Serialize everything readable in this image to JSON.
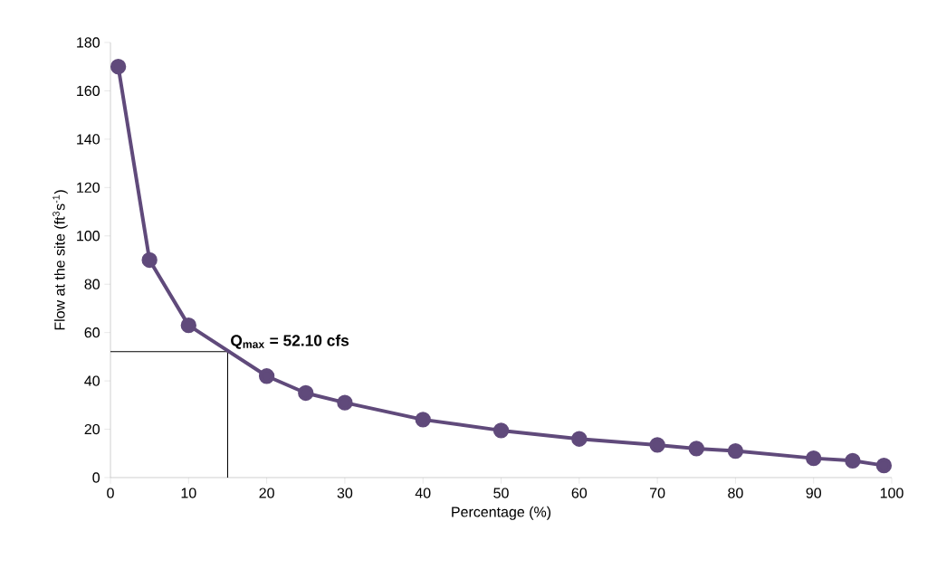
{
  "chart_data": {
    "type": "line",
    "xlabel": "Percentage (%)",
    "ylabel": "Flow at the site (ft$^{3}$s$^{-1}$)",
    "x": [
      1,
      5,
      10,
      20,
      25,
      30,
      40,
      50,
      60,
      70,
      75,
      80,
      90,
      95,
      99
    ],
    "series": [
      {
        "color": "#604a7b",
        "values": [
          170,
          90,
          63,
          42,
          35,
          31,
          24,
          19.5,
          16,
          13.5,
          12,
          11,
          8,
          7,
          5
        ]
      }
    ],
    "xlim": [
      0,
      100
    ],
    "ylim": [
      0,
      180
    ],
    "xticks": [
      0,
      10,
      20,
      30,
      40,
      50,
      60,
      70,
      80,
      90,
      100
    ],
    "yticks": [
      0,
      20,
      40,
      60,
      80,
      100,
      120,
      140,
      160,
      180
    ],
    "ref_lines": [
      {
        "axis": "y",
        "value": 52.1,
        "label": "Q$_{max}$ = 52.10 cfs",
        "color": "#000000"
      },
      {
        "axis": "x",
        "value": 15,
        "color": "#000000"
      }
    ],
    "marker": "circle",
    "line_style": "solid",
    "grid": false
  }
}
